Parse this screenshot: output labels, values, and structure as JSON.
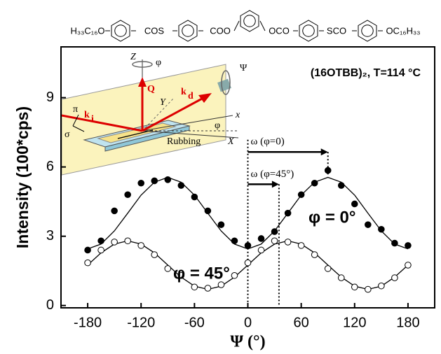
{
  "chart_data": {
    "type": "scatter",
    "formula": [
      "H₃₃C₁₆O",
      "COS",
      "COO",
      "OCO",
      "SCO",
      "OC₁₆H₃₃"
    ],
    "annotation": "(16OTBB)₂, T=114 °C",
    "xlabel": "Ψ  (°)",
    "ylabel": "Intensity (100*cps)",
    "xlim": [
      -210,
      210
    ],
    "ylim": [
      -0.1,
      11.2
    ],
    "xticks": [
      -180,
      -120,
      -60,
      0,
      60,
      120,
      180
    ],
    "yticks": [
      0,
      3,
      6,
      9
    ],
    "x": [
      -180,
      -165,
      -150,
      -135,
      -120,
      -105,
      -90,
      -75,
      -60,
      -45,
      -30,
      -15,
      0,
      15,
      30,
      45,
      60,
      75,
      90,
      105,
      120,
      135,
      150,
      165,
      180
    ],
    "series": [
      {
        "name": "φ = 0°",
        "color": "#000000",
        "marker": "filled",
        "values": [
          2.4,
          2.8,
          4.1,
          4.8,
          5.3,
          5.4,
          5.45,
          5.2,
          4.7,
          4.1,
          3.5,
          2.8,
          2.6,
          2.9,
          3.2,
          4.0,
          4.8,
          5.3,
          5.85,
          5.2,
          4.4,
          3.5,
          3.3,
          2.7,
          2.6
        ],
        "fit": [
          2.45,
          2.66,
          3.23,
          4.0,
          4.78,
          5.34,
          5.55,
          5.34,
          4.78,
          4.0,
          3.23,
          2.66,
          2.45,
          2.66,
          3.23,
          4.0,
          4.78,
          5.34,
          5.55,
          5.34,
          4.78,
          4.0,
          3.23,
          2.66,
          2.45
        ]
      },
      {
        "name": "φ = 45°",
        "color": "#000000",
        "marker": "open",
        "values": [
          1.85,
          2.4,
          2.75,
          2.8,
          2.6,
          2.2,
          1.6,
          1.3,
          0.8,
          0.75,
          0.9,
          1.3,
          1.85,
          2.4,
          2.8,
          2.75,
          2.6,
          2.2,
          1.6,
          1.2,
          0.8,
          0.7,
          0.85,
          1.2,
          1.75
        ],
        "fit": [
          1.75,
          2.28,
          2.66,
          2.8,
          2.66,
          2.28,
          1.75,
          1.23,
          0.84,
          0.7,
          0.84,
          1.23,
          1.75,
          2.28,
          2.66,
          2.8,
          2.66,
          2.28,
          1.75,
          1.23,
          0.84,
          0.7,
          0.84,
          1.23,
          1.75
        ]
      }
    ],
    "omega_arrows": [
      {
        "text": "ω (φ=0)",
        "x0": 0,
        "x1": 90,
        "y": 6.65
      },
      {
        "text": "ω (φ=45°)",
        "x0": 0,
        "x1": 35,
        "y": 5.25
      }
    ],
    "inset_labels": {
      "Z": "Z",
      "phi_top": "φ",
      "Q": "Q",
      "kd": "k",
      "kd_sub": "d",
      "ki": "k",
      "ki_sub": "i",
      "Y": "Y",
      "x": "x",
      "X": "X",
      "pi": "π",
      "sigma": "σ",
      "phi_plane": "φ",
      "rubbing": "Rubbing",
      "psi": "Ψ"
    }
  }
}
